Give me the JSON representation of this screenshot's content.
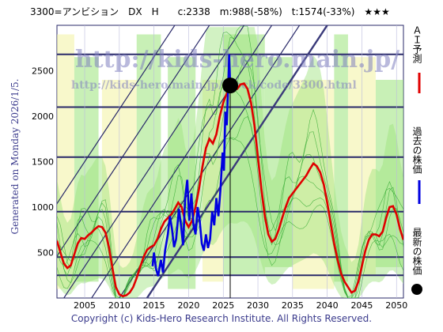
{
  "header": {
    "text": "3300=アンビション　DX　H　　c:2338　m:988(-58%)　t:1574(-33%)　★★★"
  },
  "side": {
    "generated": "Generated on Monday 2026/1/5."
  },
  "footer": {
    "copyright": "Copyright (c) Kids-Hero Research Institute. All Rights Reserved."
  },
  "watermark": {
    "url_big": "http://kids-hero.main.jp/",
    "url_small": "http://kids-hero.main.jp/stock/code/3300.html"
  },
  "legend": {
    "ai": "ＡＩ予測",
    "past": "過去の株価",
    "latest": "最新の株価"
  },
  "colors": {
    "ai": "#e00000",
    "past": "#0000e0",
    "band_green": "#9be37a",
    "band_yellow": "#f3f3a0",
    "lines": "#2a2a6a"
  },
  "chart_data": {
    "type": "line",
    "xlim": [
      2001,
      2051
    ],
    "ylim": [
      0,
      3000
    ],
    "x_ticks": [
      2005,
      2010,
      2015,
      2020,
      2025,
      2030,
      2035,
      2040,
      2045,
      2050
    ],
    "y_ticks": [
      500,
      1000,
      1500,
      2000,
      2500
    ],
    "horizontal_levels": [
      250,
      450,
      950,
      1550,
      2100,
      2680
    ],
    "latest_point": {
      "x": 2026.0,
      "y": 2338
    },
    "current_marker_x": 2026.0,
    "series": [
      {
        "name": "ＡＩ予測",
        "values": [
          [
            2001,
            630
          ],
          [
            2001.5,
            500
          ],
          [
            2002,
            380
          ],
          [
            2002.5,
            330
          ],
          [
            2003,
            360
          ],
          [
            2003.5,
            480
          ],
          [
            2004,
            600
          ],
          [
            2004.5,
            660
          ],
          [
            2005,
            650
          ],
          [
            2005.5,
            690
          ],
          [
            2006,
            720
          ],
          [
            2006.5,
            760
          ],
          [
            2007,
            790
          ],
          [
            2007.5,
            780
          ],
          [
            2008,
            720
          ],
          [
            2008.5,
            560
          ],
          [
            2009,
            330
          ],
          [
            2009.5,
            120
          ],
          [
            2010,
            40
          ],
          [
            2010.5,
            20
          ],
          [
            2011,
            30
          ],
          [
            2011.5,
            60
          ],
          [
            2012,
            120
          ],
          [
            2012.5,
            220
          ],
          [
            2013,
            340
          ],
          [
            2013.5,
            450
          ],
          [
            2014,
            530
          ],
          [
            2014.5,
            560
          ],
          [
            2015,
            580
          ],
          [
            2015.5,
            650
          ],
          [
            2016,
            760
          ],
          [
            2016.5,
            840
          ],
          [
            2017,
            880
          ],
          [
            2017.5,
            920
          ],
          [
            2018,
            980
          ],
          [
            2018.5,
            1050
          ],
          [
            2019,
            1000
          ],
          [
            2019.5,
            850
          ],
          [
            2020,
            780
          ],
          [
            2020.5,
            850
          ],
          [
            2021,
            1000
          ],
          [
            2021.5,
            1200
          ],
          [
            2022,
            1450
          ],
          [
            2022.5,
            1650
          ],
          [
            2023,
            1750
          ],
          [
            2023.5,
            1700
          ],
          [
            2024,
            1800
          ],
          [
            2024.5,
            2000
          ],
          [
            2025,
            2150
          ],
          [
            2025.5,
            2250
          ],
          [
            2026,
            2320
          ],
          [
            2026.5,
            2300
          ],
          [
            2027,
            2300
          ],
          [
            2027.5,
            2350
          ],
          [
            2028,
            2360
          ],
          [
            2028.5,
            2300
          ],
          [
            2029,
            2150
          ],
          [
            2029.5,
            1900
          ],
          [
            2030,
            1550
          ],
          [
            2030.5,
            1200
          ],
          [
            2031,
            900
          ],
          [
            2031.5,
            700
          ],
          [
            2032,
            620
          ],
          [
            2032.5,
            650
          ],
          [
            2033,
            750
          ],
          [
            2033.5,
            880
          ],
          [
            2034,
            1000
          ],
          [
            2034.5,
            1100
          ],
          [
            2035,
            1150
          ],
          [
            2035.5,
            1200
          ],
          [
            2036,
            1250
          ],
          [
            2036.5,
            1300
          ],
          [
            2037,
            1350
          ],
          [
            2037.5,
            1420
          ],
          [
            2038,
            1480
          ],
          [
            2038.5,
            1450
          ],
          [
            2039,
            1380
          ],
          [
            2039.5,
            1250
          ],
          [
            2040,
            1050
          ],
          [
            2040.5,
            820
          ],
          [
            2041,
            600
          ],
          [
            2041.5,
            420
          ],
          [
            2042,
            270
          ],
          [
            2042.5,
            180
          ],
          [
            2043,
            120
          ],
          [
            2043.5,
            60
          ],
          [
            2044,
            80
          ],
          [
            2044.5,
            180
          ],
          [
            2045,
            350
          ],
          [
            2045.5,
            520
          ],
          [
            2046,
            640
          ],
          [
            2046.5,
            700
          ],
          [
            2047,
            700
          ],
          [
            2047.5,
            680
          ],
          [
            2048,
            730
          ],
          [
            2048.5,
            880
          ],
          [
            2049,
            1000
          ],
          [
            2049.5,
            1010
          ],
          [
            2050,
            920
          ],
          [
            2050.5,
            760
          ],
          [
            2051,
            640
          ]
        ]
      },
      {
        "name": "過去の株価",
        "values": [
          [
            2014.8,
            350
          ],
          [
            2015.0,
            500
          ],
          [
            2015.3,
            320
          ],
          [
            2015.6,
            240
          ],
          [
            2016.0,
            420
          ],
          [
            2016.3,
            280
          ],
          [
            2016.6,
            520
          ],
          [
            2017.0,
            700
          ],
          [
            2017.3,
            900
          ],
          [
            2017.6,
            760
          ],
          [
            2017.9,
            560
          ],
          [
            2018.2,
            650
          ],
          [
            2018.6,
            980
          ],
          [
            2018.9,
            800
          ],
          [
            2019.2,
            580
          ],
          [
            2019.5,
            1100
          ],
          [
            2019.8,
            1300
          ],
          [
            2020.1,
            850
          ],
          [
            2020.4,
            1150
          ],
          [
            2020.7,
            800
          ],
          [
            2021.0,
            700
          ],
          [
            2021.3,
            1000
          ],
          [
            2021.6,
            850
          ],
          [
            2021.9,
            600
          ],
          [
            2022.2,
            520
          ],
          [
            2022.5,
            700
          ],
          [
            2022.8,
            550
          ],
          [
            2023.1,
            650
          ],
          [
            2023.4,
            950
          ],
          [
            2023.7,
            800
          ],
          [
            2024.0,
            1100
          ],
          [
            2024.3,
            900
          ],
          [
            2024.6,
            1200
          ],
          [
            2024.9,
            1600
          ],
          [
            2025.1,
            1400
          ],
          [
            2025.3,
            2050
          ],
          [
            2025.5,
            1900
          ],
          [
            2025.7,
            2300
          ],
          [
            2025.85,
            2680
          ],
          [
            2026.0,
            2338
          ]
        ]
      }
    ],
    "bands": "percentile channels (green/yellow) forecast envelopes"
  }
}
